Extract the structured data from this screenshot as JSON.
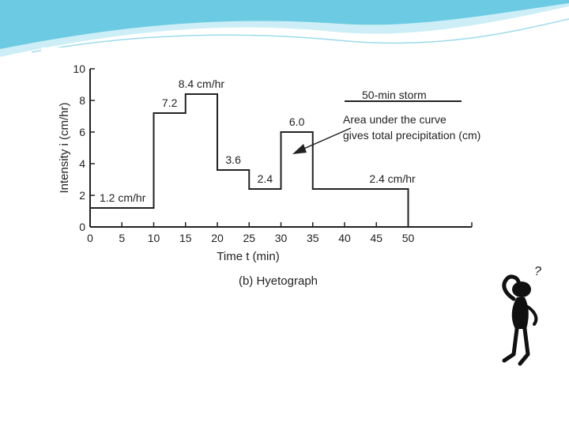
{
  "slide": {
    "accent_color": "#59c3df",
    "accent_light": "#bfe9f3"
  },
  "chart_data": {
    "type": "line",
    "subtype": "step",
    "title": "",
    "xlabel": "Time t (min)",
    "ylabel": "Intensity i (cm/hr)",
    "caption": "(b) Hyetograph",
    "xlim": [
      0,
      60
    ],
    "ylim": [
      0,
      10
    ],
    "x_ticks": [
      0,
      5,
      10,
      15,
      20,
      25,
      30,
      35,
      40,
      45,
      50
    ],
    "y_ticks": [
      0,
      2,
      4,
      6,
      8,
      10
    ],
    "grid": false,
    "line_color": "#222222",
    "intervals": [
      {
        "start": 0,
        "end": 10,
        "intensity": 1.2,
        "label": "1.2 cm/hr"
      },
      {
        "start": 10,
        "end": 15,
        "intensity": 7.2,
        "label": "7.2"
      },
      {
        "start": 15,
        "end": 20,
        "intensity": 8.4,
        "label": "8.4 cm/hr"
      },
      {
        "start": 20,
        "end": 25,
        "intensity": 3.6,
        "label": "3.6"
      },
      {
        "start": 25,
        "end": 30,
        "intensity": 2.4,
        "label": "2.4"
      },
      {
        "start": 30,
        "end": 35,
        "intensity": 6.0,
        "label": "6.0"
      },
      {
        "start": 35,
        "end": 50,
        "intensity": 2.4,
        "label": "2.4 cm/hr"
      }
    ],
    "legend": {
      "title": "50-min storm",
      "lines": [
        "Area under the curve",
        "gives total precipitation (cm)"
      ]
    }
  },
  "illustration": {
    "icon": "thinking-person-icon",
    "symbol": "?"
  }
}
